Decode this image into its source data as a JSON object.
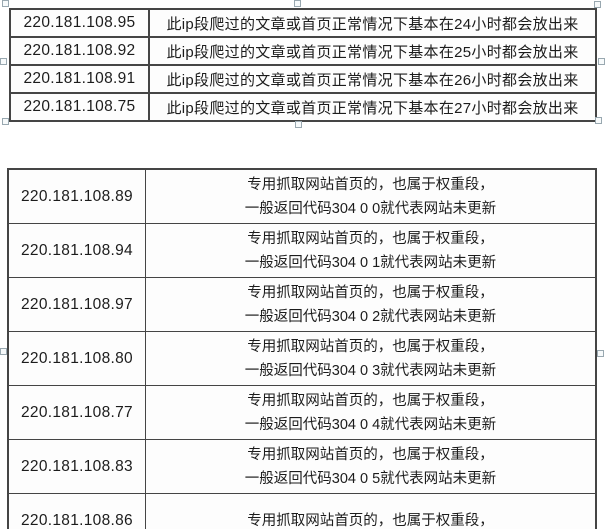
{
  "colors": {
    "background": "#ffffff",
    "table_border": "#454545",
    "text": "#1c1c1c",
    "handle_fill": "#f7fafb",
    "handle_border": "#99a8b0"
  },
  "table1": {
    "rows": [
      {
        "ip": "220.181.108.95",
        "desc": "此ip段爬过的文章或首页正常情况下基本在24小时都会放出来"
      },
      {
        "ip": "220.181.108.92",
        "desc": "此ip段爬过的文章或首页正常情况下基本在25小时都会放出来"
      },
      {
        "ip": "220.181.108.91",
        "desc": "此ip段爬过的文章或首页正常情况下基本在26小时都会放出来"
      },
      {
        "ip": "220.181.108.75",
        "desc": "此ip段爬过的文章或首页正常情况下基本在27小时都会放出来"
      }
    ]
  },
  "table2": {
    "rows": [
      {
        "ip": "220.181.108.89",
        "line1": "专用抓取网站首页的，也属于权重段，",
        "line2": "一般返回代码304 0 0就代表网站未更新"
      },
      {
        "ip": "220.181.108.94",
        "line1": "专用抓取网站首页的，也属于权重段，",
        "line2": "一般返回代码304 0 1就代表网站未更新"
      },
      {
        "ip": "220.181.108.97",
        "line1": "专用抓取网站首页的，也属于权重段，",
        "line2": "一般返回代码304 0 2就代表网站未更新"
      },
      {
        "ip": "220.181.108.80",
        "line1": "专用抓取网站首页的，也属于权重段，",
        "line2": "一般返回代码304 0 3就代表网站未更新"
      },
      {
        "ip": "220.181.108.77",
        "line1": "专用抓取网站首页的，也属于权重段，",
        "line2": "一般返回代码304 0 4就代表网站未更新"
      },
      {
        "ip": "220.181.108.83",
        "line1": "专用抓取网站首页的，也属于权重段，",
        "line2": "一般返回代码304 0 5就代表网站未更新"
      },
      {
        "ip": "220.181.108.86",
        "line1": "专用抓取网站首页的，也属于权重段，",
        "line2": ""
      }
    ]
  }
}
